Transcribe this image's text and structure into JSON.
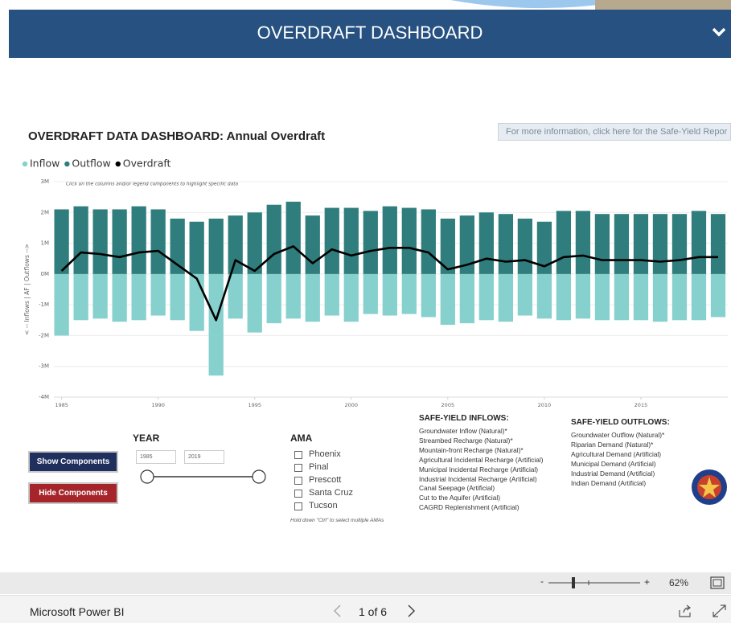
{
  "header": {
    "title": "OVERDRAFT DASHBOARD"
  },
  "info_link": "For more information, click here for the Safe-Yield Repor",
  "chart_data": {
    "type": "bar",
    "title": "OVERDRAFT DATA DASHBOARD: Annual Overdraft",
    "annotation": "Click on the columns and/or legend components to highlight specific data",
    "y_label": "< -- Inflows | AF | Outflows -->",
    "x": [
      1985,
      1986,
      1987,
      1988,
      1989,
      1990,
      1991,
      1992,
      1993,
      1994,
      1995,
      1996,
      1997,
      1998,
      1999,
      2000,
      2001,
      2002,
      2003,
      2004,
      2005,
      2006,
      2007,
      2008,
      2009,
      2010,
      2011,
      2012,
      2013,
      2014,
      2015,
      2016,
      2017,
      2018,
      2019
    ],
    "xlim": [
      1984.6,
      2019.5
    ],
    "xticks": [
      1985,
      1990,
      1995,
      2000,
      2005,
      2010,
      2015
    ],
    "ylim": [
      -4000000,
      3000000
    ],
    "yticks": [
      {
        "value": -4000000,
        "label": "-4M"
      },
      {
        "value": -3000000,
        "label": "-3M"
      },
      {
        "value": -2000000,
        "label": "-2M"
      },
      {
        "value": -1000000,
        "label": "-1M"
      },
      {
        "value": 0,
        "label": "0M"
      },
      {
        "value": 1000000,
        "label": "1M"
      },
      {
        "value": 2000000,
        "label": "2M"
      },
      {
        "value": 3000000,
        "label": "3M"
      }
    ],
    "grid": true,
    "legend": "top-left",
    "series": [
      {
        "name": "Inflow",
        "color": "#86d0cd",
        "values": [
          -2000000,
          -1500000,
          -1450000,
          -1550000,
          -1500000,
          -1350000,
          -1500000,
          -1850000,
          -3300000,
          -1450000,
          -1900000,
          -1600000,
          -1450000,
          -1550000,
          -1350000,
          -1550000,
          -1300000,
          -1350000,
          -1300000,
          -1400000,
          -1650000,
          -1600000,
          -1500000,
          -1550000,
          -1350000,
          -1450000,
          -1500000,
          -1450000,
          -1500000,
          -1500000,
          -1500000,
          -1550000,
          -1500000,
          -1500000,
          -1400000
        ]
      },
      {
        "name": "Outflow",
        "color": "#2f7d7c",
        "values": [
          2100000,
          2200000,
          2100000,
          2100000,
          2200000,
          2100000,
          1800000,
          1700000,
          1800000,
          1900000,
          2000000,
          2250000,
          2350000,
          1900000,
          2150000,
          2150000,
          2050000,
          2200000,
          2150000,
          2100000,
          1800000,
          1900000,
          2000000,
          1950000,
          1800000,
          1700000,
          2050000,
          2050000,
          1950000,
          1950000,
          1950000,
          1950000,
          1950000,
          2050000,
          1950000
        ]
      },
      {
        "name": "Overdraft",
        "type": "line",
        "color": "#000000",
        "values": [
          100000,
          700000,
          650000,
          550000,
          700000,
          750000,
          300000,
          -150000,
          -1500000,
          450000,
          100000,
          650000,
          900000,
          350000,
          800000,
          600000,
          750000,
          850000,
          850000,
          700000,
          150000,
          300000,
          500000,
          400000,
          450000,
          250000,
          550000,
          600000,
          450000,
          450000,
          450000,
          400000,
          450000,
          550000,
          550000
        ]
      }
    ]
  },
  "buttons": [
    "Show Components",
    "Hide Components"
  ],
  "year_filter": {
    "label": "YEAR",
    "from": "1985",
    "to": "2019"
  },
  "ama_filter": {
    "label": "AMA",
    "options": [
      "Phoenix",
      "Pinal",
      "Prescott",
      "Santa Cruz",
      "Tucson"
    ],
    "note": "Hold down \"Ctrl\" to select multiple AMAs"
  },
  "inflows": {
    "title": "SAFE-YIELD INFLOWS:",
    "items": [
      "Groundwater Inflow (Natural)*",
      "Streambed Recharge (Natural)*",
      "Mountain-front Recharge (Natural)*",
      "Agricultural Incidental Recharge (Artificial)",
      "Municipal Incidental Recharge (Artificial)",
      "Industrial Incidental Recharge (Artificial)",
      "Canal Seepage (Artificial)",
      "Cut to the Aquifer (Artificial)",
      "CAGRD Replenishment (Artificial)"
    ]
  },
  "outflows": {
    "title": "SAFE-YIELD OUTFLOWS:",
    "items": [
      "Groundwater Outflow (Natural)*",
      "Riparian Demand (Natural)*",
      "Agricultural Demand (Artificial)",
      "Municipal Demand (Artificial)",
      "Industrial Demand (Artificial)",
      "Indian Demand (Artificial)"
    ]
  },
  "zoom": {
    "minus": "-",
    "plus": "+",
    "level": "62%"
  },
  "footer": {
    "brand": "Microsoft Power BI",
    "page": "1 of 6"
  }
}
